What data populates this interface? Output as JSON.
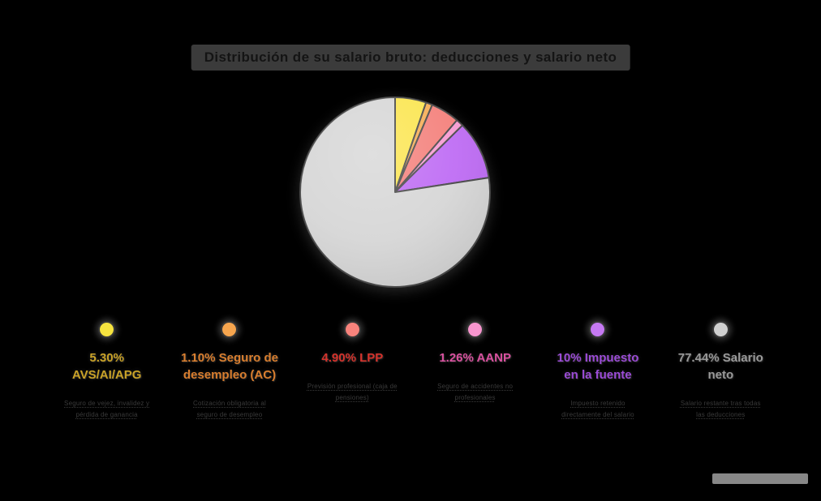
{
  "title": "Distribución de su salario bruto: deducciones y salario neto",
  "chart_data": {
    "type": "pie",
    "labels": [
      "AVS/AI/APG",
      "Seguro de desempleo (AC)",
      "LPP",
      "AANP",
      "Impuesto en la fuente",
      "Salario neto"
    ],
    "values": [
      5.3,
      1.1,
      4.9,
      1.26,
      10.0,
      77.44
    ],
    "colors": [
      "#FBE54F",
      "#F6AD55",
      "#F4807B",
      "#F79BD3",
      "#BE6BF4",
      "#D6D6D6"
    ],
    "stroke_color": "#474747",
    "start_angle": "top (12 o'clock)",
    "direction": "clockwise",
    "legend_position": "bottom",
    "units": "%"
  },
  "legend": {
    "items": [
      {
        "label": "5.30% AVS/AI/APG",
        "dot_color": "#F6E33F",
        "text_color": "#C9A227",
        "caption": "Seguro de vejez, invalidez y pérdida de ganancia"
      },
      {
        "label": "1.10% Seguro de desempleo (AC)",
        "dot_color": "#F6A54E",
        "text_color": "#D97E2E",
        "caption": "Cotización obligatoria al seguro de desempleo"
      },
      {
        "label": "4.90% LPP",
        "dot_color": "#F8837C",
        "text_color": "#D5332C",
        "caption": "Previsión profesional (caja de pensiones)"
      },
      {
        "label": "1.26% AANP",
        "dot_color": "#F795CE",
        "text_color": "#D9519F",
        "caption": "Seguro de accidentes no profesionales"
      },
      {
        "label": "10% Impuesto en la fuente",
        "dot_color": "#C579F2",
        "text_color": "#9B4BD6",
        "caption": "Impuesto retenido directamente del salario"
      },
      {
        "label": "77.44% Salario neto",
        "dot_color": "#CFCFCF",
        "text_color": "#9A9A9A",
        "caption": "Salario restante tras todas las deducciones"
      }
    ]
  }
}
